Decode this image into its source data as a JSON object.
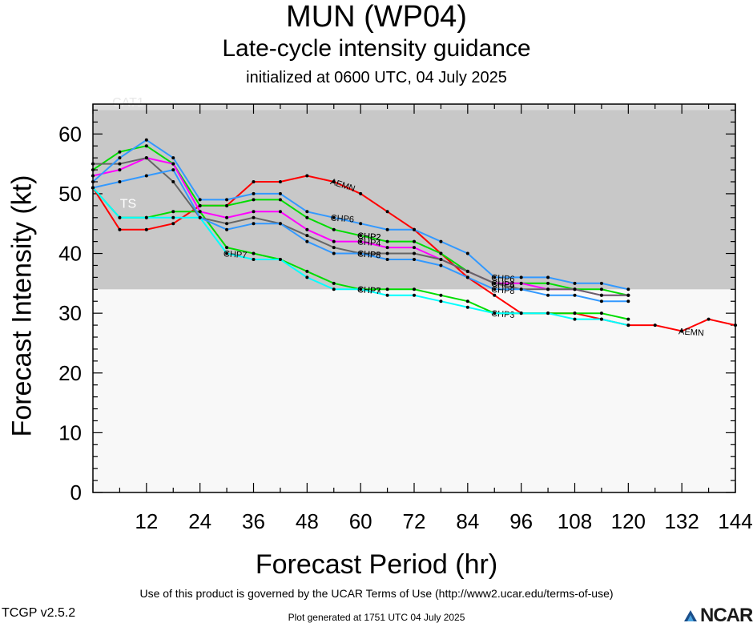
{
  "header": {
    "title": "MUN (WP04)",
    "subtitle": "Late-cycle intensity guidance",
    "initialized": "initialized at 0600 UTC, 04 July 2025"
  },
  "footer": {
    "terms": "Use of this product is governed by the UCAR Terms of Use (http://www2.ucar.edu/terms-of-use)",
    "generated": "Plot generated at 1751 UTC   04 July 2025",
    "version": "TCGP v2.5.2",
    "logo": "NCAR"
  },
  "chart_data": {
    "type": "line",
    "xlabel": "Forecast Period (hr)",
    "ylabel": "Forecast Intensity (kt)",
    "xlim": [
      0,
      144
    ],
    "ylim": [
      0,
      65
    ],
    "xticks": [
      12,
      24,
      36,
      48,
      60,
      72,
      84,
      96,
      108,
      120,
      132,
      144
    ],
    "yticks": [
      0,
      10,
      20,
      30,
      40,
      50,
      60
    ],
    "bands": [
      {
        "label": "TS",
        "from": 34,
        "to": 64,
        "color": "#c8c8c8"
      },
      {
        "label": "CAT1",
        "from": 64,
        "to": 65,
        "color": "#dcdcdc"
      }
    ],
    "series": [
      {
        "name": "AEMN",
        "color": "#ff0000",
        "x": [
          0,
          6,
          12,
          18,
          24,
          30,
          36,
          42,
          48,
          54,
          60,
          66,
          72,
          78,
          84,
          90,
          96,
          102,
          108,
          114,
          120,
          126,
          132,
          138,
          144
        ],
        "y": [
          51,
          44,
          44,
          45,
          48,
          48,
          52,
          52,
          53,
          52,
          50,
          47,
          44,
          40,
          36,
          33,
          30,
          30,
          30,
          29,
          28,
          28,
          27,
          29,
          28
        ]
      },
      {
        "name": "CHP2",
        "color": "#00dd00",
        "x": [
          0,
          6,
          12,
          18,
          24,
          30,
          36,
          42,
          48,
          54,
          60,
          66,
          72,
          78,
          84,
          90,
          96,
          102,
          108,
          114,
          120
        ],
        "y": [
          54,
          57,
          58,
          55,
          48,
          48,
          49,
          49,
          46,
          44,
          43,
          42,
          42,
          40,
          37,
          35,
          35,
          35,
          34,
          34,
          33
        ]
      },
      {
        "name": "CHP3",
        "color": "#00dd00",
        "x": [
          0,
          6,
          12,
          18,
          24,
          30,
          36,
          42,
          48,
          54,
          60,
          66,
          72,
          78,
          84,
          90,
          96,
          102,
          108,
          114,
          120
        ],
        "y": [
          51,
          46,
          46,
          47,
          47,
          41,
          40,
          39,
          37,
          35,
          34,
          34,
          34,
          33,
          32,
          30,
          30,
          30,
          30,
          30,
          29
        ]
      },
      {
        "name": "CHP4",
        "color": "#ff00ff",
        "x": [
          0,
          6,
          12,
          18,
          24,
          30,
          36,
          42,
          48,
          54,
          60,
          66,
          72,
          78,
          84,
          90,
          96,
          102,
          108,
          114,
          120
        ],
        "y": [
          53,
          54,
          56,
          55,
          47,
          46,
          47,
          47,
          44,
          42,
          42,
          41,
          41,
          39,
          37,
          35,
          35,
          34,
          34,
          33,
          33
        ]
      },
      {
        "name": "CHP5",
        "color": "#666666",
        "x": [
          0,
          6,
          12,
          18,
          24,
          30,
          36,
          42,
          48,
          54,
          60,
          66,
          72,
          78,
          84,
          90,
          96,
          102,
          108,
          114,
          120
        ],
        "y": [
          55,
          55,
          56,
          52,
          46,
          45,
          46,
          45,
          43,
          41,
          40,
          40,
          40,
          39,
          37,
          35,
          34,
          34,
          34,
          33,
          33
        ]
      },
      {
        "name": "CHP6",
        "color": "#3399ff",
        "x": [
          0,
          6,
          12,
          18,
          24,
          30,
          36,
          42,
          48,
          54,
          60,
          66,
          72,
          78,
          84,
          90,
          96,
          102,
          108,
          114,
          120
        ],
        "y": [
          52,
          56,
          59,
          56,
          49,
          49,
          50,
          50,
          47,
          46,
          45,
          44,
          44,
          42,
          40,
          36,
          36,
          36,
          35,
          35,
          34
        ]
      },
      {
        "name": "CHP8",
        "color": "#3399ff",
        "x": [
          0,
          6,
          12,
          18,
          24,
          30,
          36,
          42,
          48,
          54,
          60,
          66,
          72,
          78,
          84,
          90,
          96,
          102,
          108,
          114,
          120
        ],
        "y": [
          51,
          52,
          53,
          54,
          46,
          44,
          45,
          45,
          42,
          40,
          40,
          39,
          39,
          38,
          36,
          34,
          34,
          33,
          33,
          32,
          32
        ]
      },
      {
        "name": "CHP7",
        "color": "#00ffff",
        "x": [
          0,
          6,
          12,
          18,
          24,
          30,
          36,
          42,
          48,
          54,
          60,
          66,
          72,
          78,
          84,
          90,
          96,
          102,
          108,
          114,
          120
        ],
        "y": [
          51,
          46,
          46,
          46,
          46,
          40,
          39,
          39,
          36,
          34,
          34,
          33,
          33,
          32,
          31,
          30,
          30,
          30,
          29,
          29,
          28
        ]
      }
    ]
  }
}
